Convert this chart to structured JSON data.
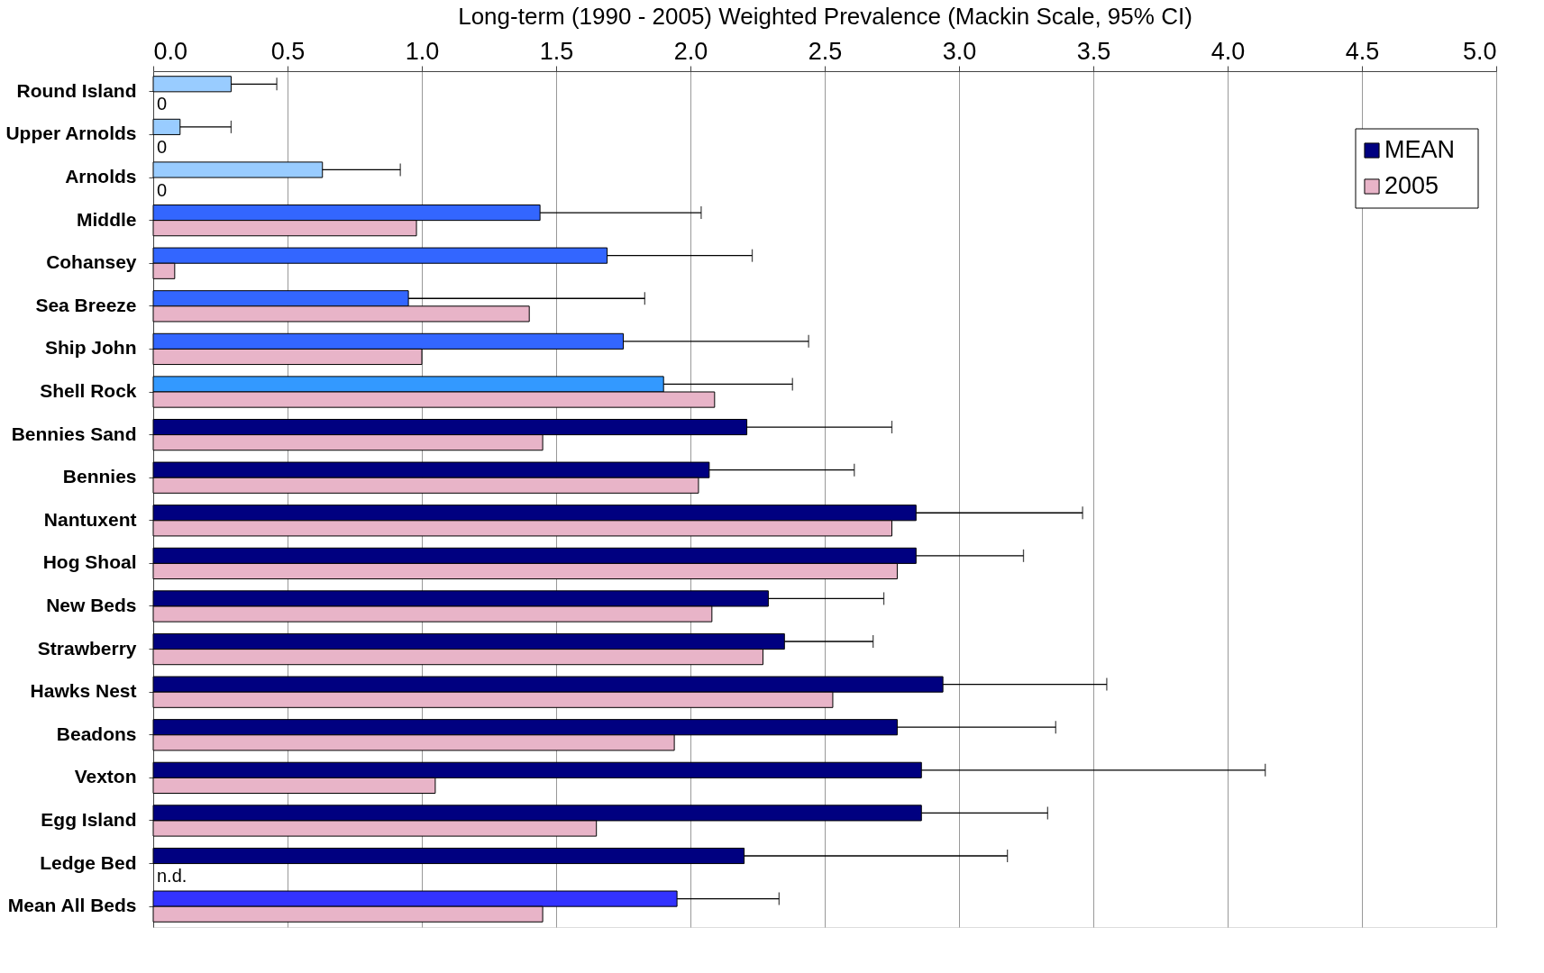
{
  "chart_data": {
    "type": "bar",
    "orientation": "horizontal",
    "xlabel": "Long-term (1990 - 2005) Weighted Prevalence (Mackin Scale, 95% CI)",
    "categories": [
      "Round Island",
      "Upper Arnolds",
      "Arnolds",
      "Middle",
      "Cohansey",
      "Sea Breeze",
      "Ship John",
      "Shell Rock",
      "Bennies Sand",
      "Bennies",
      "Nantuxent",
      "Hog Shoal",
      "New Beds",
      "Strawberry",
      "Hawks Nest",
      "Beadons",
      "Vexton",
      "Egg Island",
      "Ledge Bed",
      "Mean All Beds"
    ],
    "series": [
      {
        "name": "MEAN",
        "color": "#000080",
        "colors": [
          "#99ccff",
          "#99ccff",
          "#99ccff",
          "#3366ff",
          "#3366ff",
          "#3366ff",
          "#3366ff",
          "#3399ff",
          "#000080",
          "#000080",
          "#000080",
          "#000080",
          "#000080",
          "#000080",
          "#000080",
          "#000080",
          "#000080",
          "#000080",
          "#000080",
          "#3333ff"
        ],
        "values": [
          0.29,
          0.1,
          0.63,
          1.44,
          1.69,
          0.95,
          1.75,
          1.9,
          2.21,
          2.07,
          2.84,
          2.84,
          2.29,
          2.35,
          2.94,
          2.77,
          2.86,
          2.86,
          2.2,
          1.95
        ],
        "errors": [
          0.17,
          0.19,
          0.29,
          0.6,
          0.54,
          0.88,
          0.69,
          0.48,
          0.54,
          0.54,
          0.62,
          0.4,
          0.43,
          0.33,
          0.61,
          0.59,
          1.28,
          0.47,
          0.98,
          0.38
        ]
      },
      {
        "name": "2005",
        "color": "#e8b4c8",
        "values": [
          0,
          0,
          0,
          0.98,
          0.08,
          1.4,
          1.0,
          2.09,
          1.45,
          2.03,
          2.75,
          2.77,
          2.08,
          2.27,
          2.53,
          1.94,
          1.05,
          1.65,
          null,
          1.45
        ],
        "value_labels": [
          "0",
          "0",
          "0",
          null,
          null,
          null,
          null,
          null,
          null,
          null,
          null,
          null,
          null,
          null,
          null,
          null,
          null,
          null,
          "n.d.",
          null
        ]
      }
    ],
    "xlim": [
      0,
      5
    ],
    "xticks": [
      {
        "value": 0,
        "label": "0.0"
      },
      {
        "value": 0.5,
        "label": "0.5"
      },
      {
        "value": 1,
        "label": "1.0"
      },
      {
        "value": 1.5,
        "label": "1.5"
      },
      {
        "value": 2,
        "label": "2.0"
      },
      {
        "value": 2.5,
        "label": "2.5"
      },
      {
        "value": 3,
        "label": "3.0"
      },
      {
        "value": 3.5,
        "label": "3.5"
      },
      {
        "value": 4,
        "label": "4.0"
      },
      {
        "value": 4.5,
        "label": "4.5"
      },
      {
        "value": 5,
        "label": "5.0"
      }
    ],
    "grid": "x",
    "legend": "top right"
  }
}
